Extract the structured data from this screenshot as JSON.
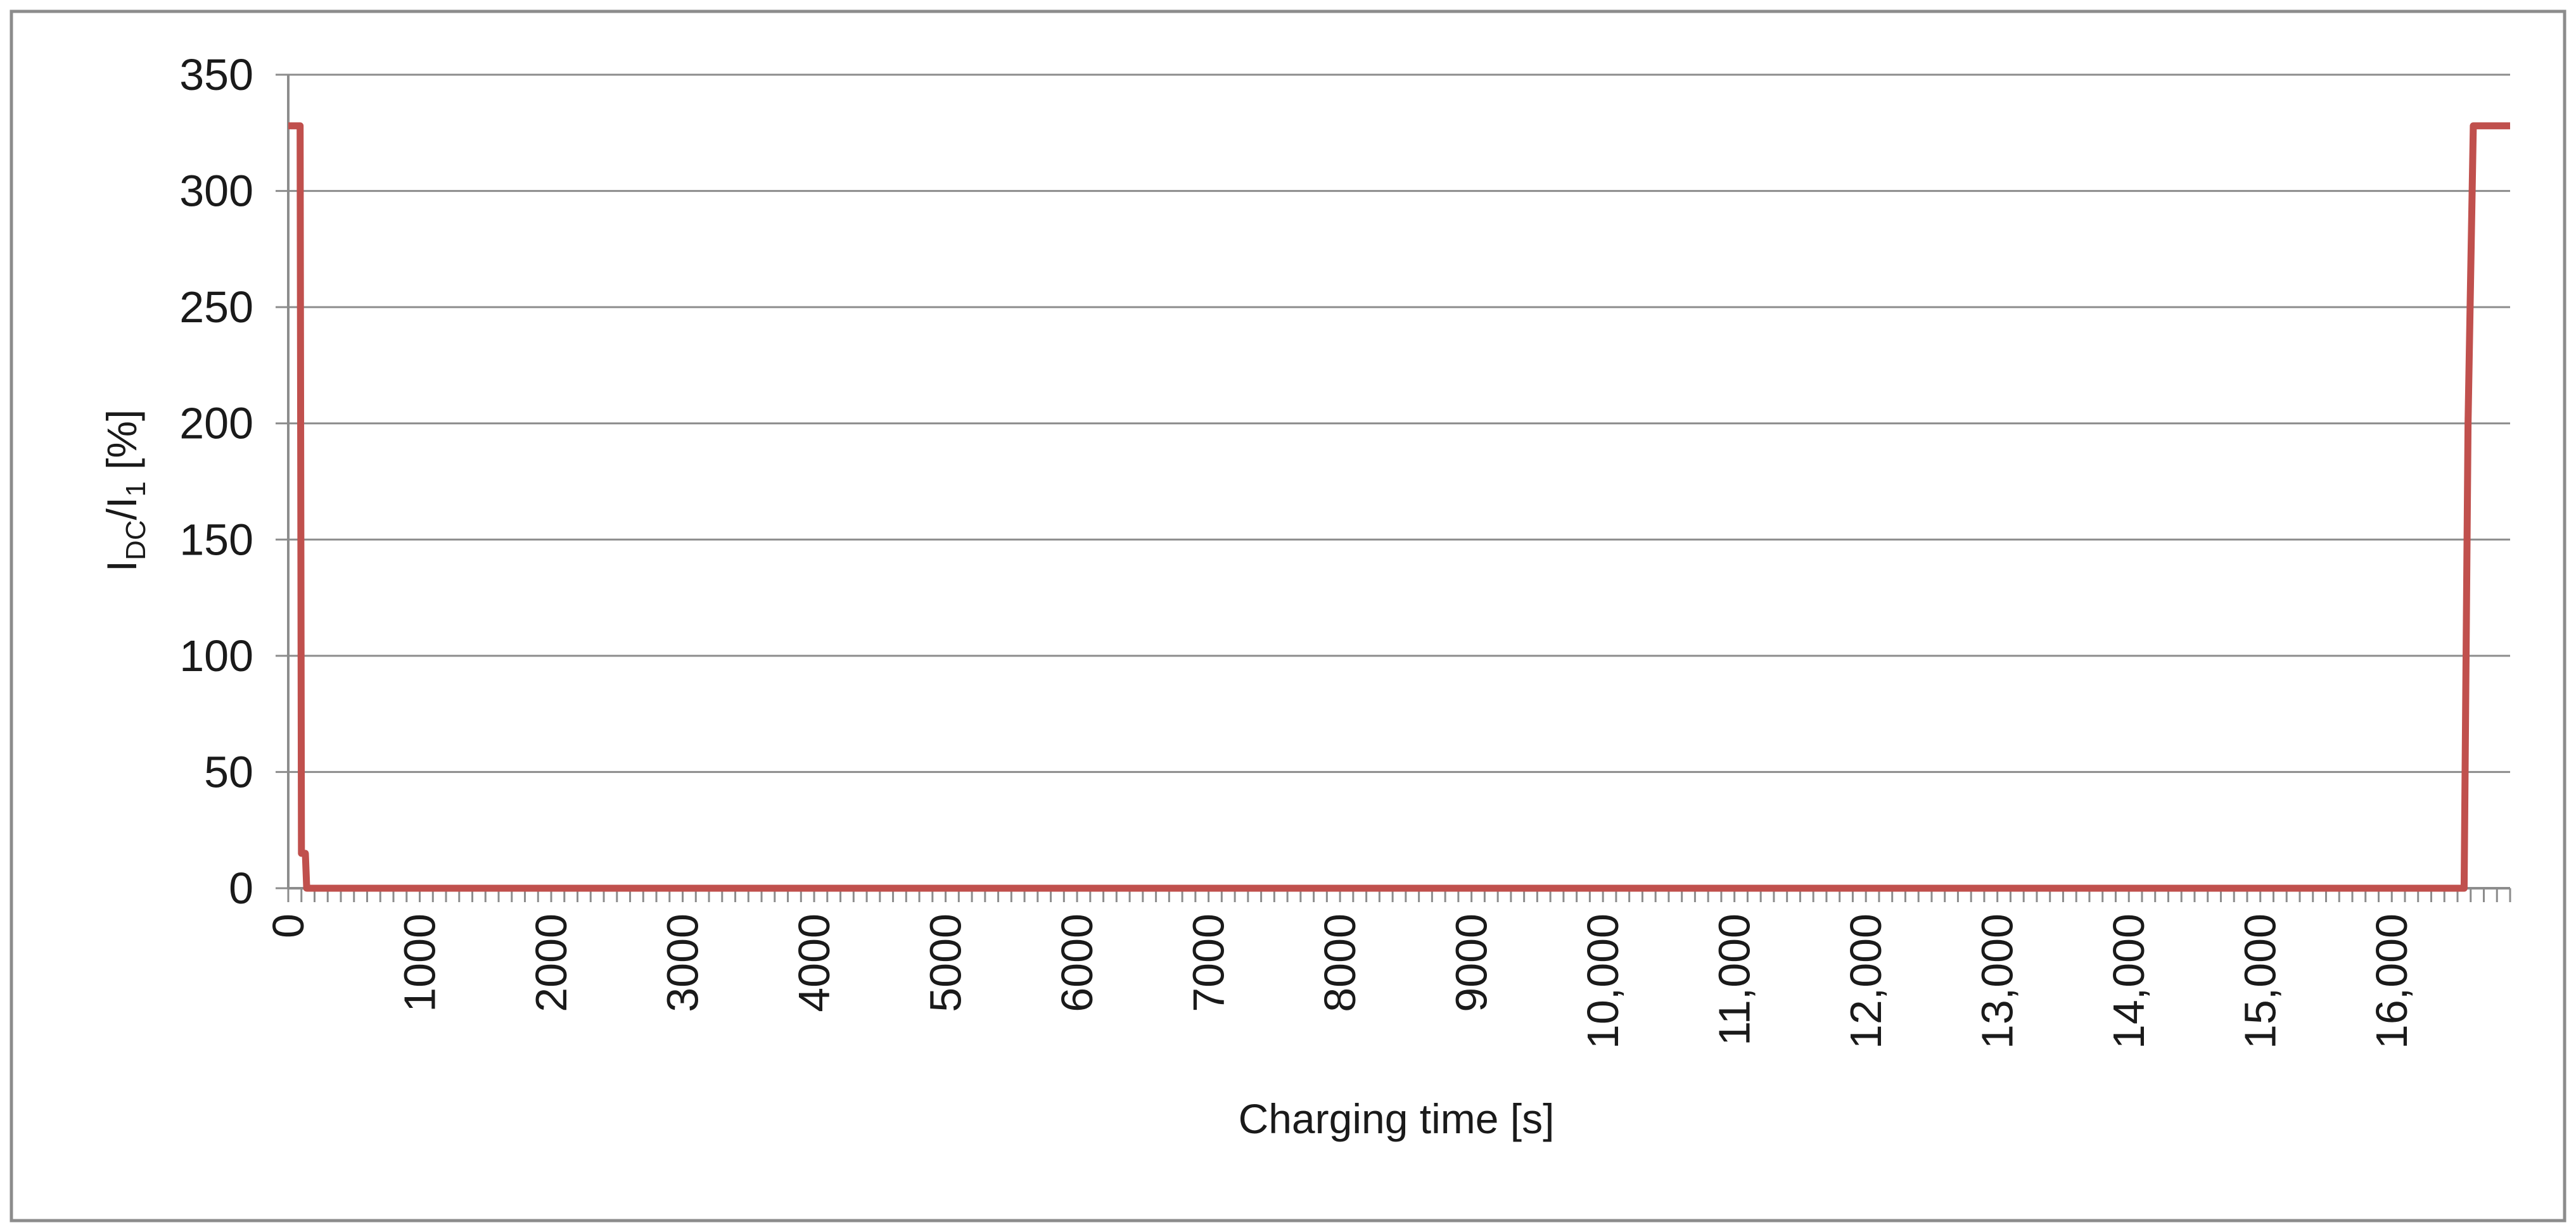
{
  "chart_data": {
    "type": "line",
    "title": "",
    "xlabel": "Charging time [s]",
    "ylabel": {
      "base1": "I",
      "sub1": "DC",
      "mid": "/I",
      "sub2": "1",
      "unit": " [%]"
    },
    "xlim": [
      0,
      16900
    ],
    "ylim": [
      0,
      350
    ],
    "y_ticks": [
      0,
      50,
      100,
      150,
      200,
      250,
      300,
      350
    ],
    "y_tick_labels": [
      "0",
      "50",
      "100",
      "150",
      "200",
      "250",
      "300",
      "350"
    ],
    "x_ticks": [
      0,
      1000,
      2000,
      3000,
      4000,
      5000,
      6000,
      7000,
      8000,
      9000,
      10000,
      11000,
      12000,
      13000,
      14000,
      15000,
      16000
    ],
    "x_tick_labels": [
      "0",
      "1000",
      "2000",
      "3000",
      "4000",
      "5000",
      "6000",
      "7000",
      "8000",
      "9000",
      "10,000",
      "11,000",
      "12,000",
      "13,000",
      "14,000",
      "15,000",
      "16,000"
    ],
    "minor_tick_step": 100,
    "grid": "horizontal",
    "legend": "none",
    "series": [
      {
        "color": "#c0504d",
        "points": [
          [
            0,
            328
          ],
          [
            90,
            328
          ],
          [
            100,
            15
          ],
          [
            130,
            15
          ],
          [
            140,
            0
          ],
          [
            16550,
            0
          ],
          [
            16580,
            200
          ],
          [
            16620,
            328
          ],
          [
            16900,
            328
          ]
        ]
      }
    ]
  }
}
